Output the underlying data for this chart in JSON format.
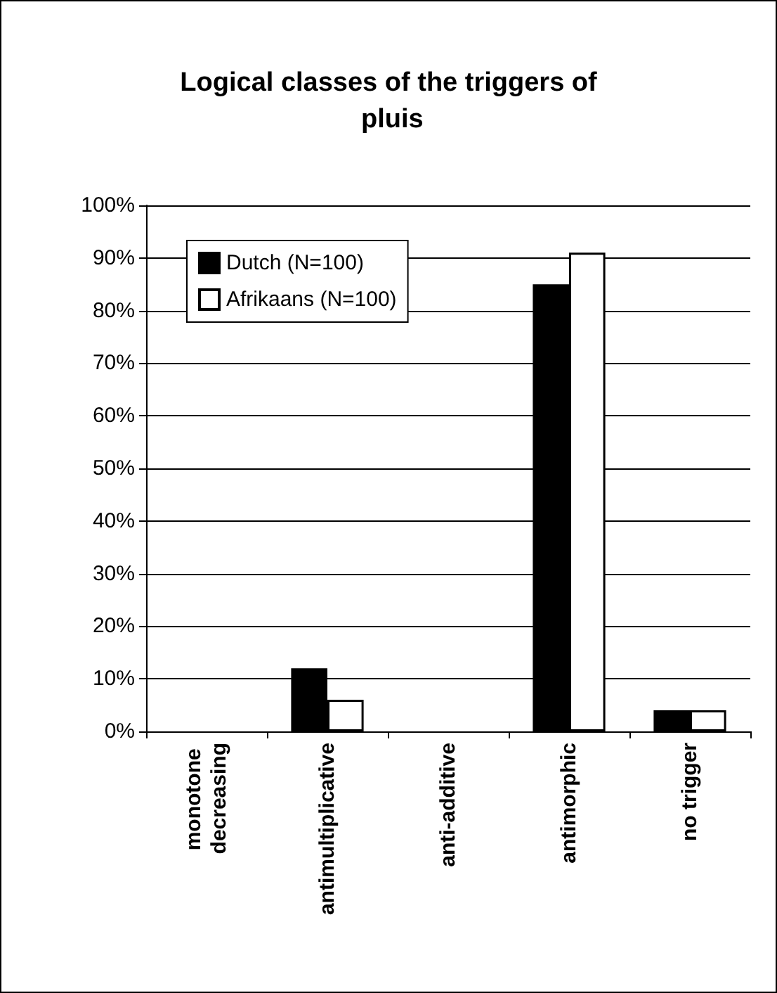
{
  "chart_data": {
    "type": "bar",
    "title": "Logical classes of the triggers of pluis",
    "categories": [
      "monotone decreasing",
      "antimultiplicative",
      "anti-additive",
      "antimorphic",
      "no trigger"
    ],
    "series": [
      {
        "name": "Dutch (N=100)",
        "color": "#000000",
        "values": [
          0,
          12,
          0,
          85,
          4
        ]
      },
      {
        "name": "Afrikaans (N=100)",
        "color": "#ffffff",
        "values": [
          0,
          6,
          0,
          91,
          4
        ]
      }
    ],
    "ylim": [
      0,
      100
    ],
    "yticks": [
      {
        "value": 0,
        "label": "0%"
      },
      {
        "value": 10,
        "label": "10%"
      },
      {
        "value": 20,
        "label": "20%"
      },
      {
        "value": 30,
        "label": "30%"
      },
      {
        "value": 40,
        "label": "40%"
      },
      {
        "value": 50,
        "label": "50%"
      },
      {
        "value": 60,
        "label": "60%"
      },
      {
        "value": 70,
        "label": "70%"
      },
      {
        "value": 80,
        "label": "80%"
      },
      {
        "value": 90,
        "label": "90%"
      },
      {
        "value": 100,
        "label": "100%"
      }
    ],
    "grid": "y",
    "legend": "top left"
  }
}
